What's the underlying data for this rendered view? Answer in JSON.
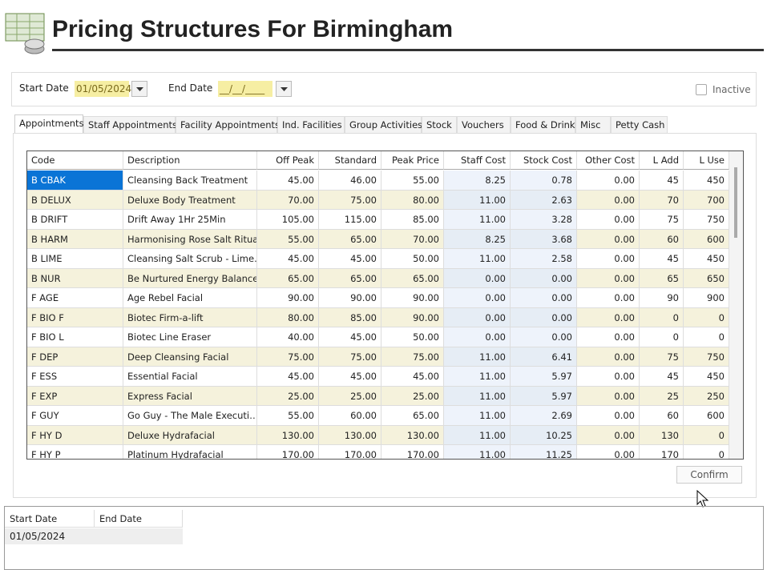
{
  "header": {
    "title": "Pricing Structures For Birmingham"
  },
  "filters": {
    "start_label": "Start Date",
    "start_value": "01/05/2024",
    "end_label": "End Date",
    "end_value": "__/__/____",
    "inactive": "Inactive"
  },
  "tabs": [
    "Appointments",
    "Staff Appointments",
    "Facility Appointments",
    "Ind. Facilities",
    "Group Activities",
    "Stock",
    "Vouchers",
    "Food & Drink",
    "Misc",
    "Petty Cash"
  ],
  "table": {
    "columns": [
      "Code",
      "Description",
      "Off Peak",
      "Standard",
      "Peak Price",
      "Staff Cost",
      "Stock Cost",
      "Other Cost",
      "L Add",
      "L Use"
    ],
    "rows": [
      [
        "B CBAK",
        "Cleansing Back Treatment",
        "45.00",
        "46.00",
        "55.00",
        "8.25",
        "0.78",
        "0.00",
        "45",
        "450"
      ],
      [
        "B DELUX",
        "Deluxe Body Treatment",
        "70.00",
        "75.00",
        "80.00",
        "11.00",
        "2.63",
        "0.00",
        "70",
        "700"
      ],
      [
        "B DRIFT",
        "Drift Away 1Hr 25Min",
        "105.00",
        "115.00",
        "85.00",
        "11.00",
        "3.28",
        "0.00",
        "75",
        "750"
      ],
      [
        "B HARM",
        "Harmonising Rose Salt Ritual",
        "55.00",
        "65.00",
        "70.00",
        "8.25",
        "3.68",
        "0.00",
        "60",
        "600"
      ],
      [
        "B LIME",
        "Cleansing Salt Scrub - Lime…",
        "45.00",
        "45.00",
        "50.00",
        "11.00",
        "2.58",
        "0.00",
        "45",
        "450"
      ],
      [
        "B NUR",
        "Be Nurtured Energy Balancer",
        "65.00",
        "65.00",
        "65.00",
        "0.00",
        "0.00",
        "0.00",
        "65",
        "650"
      ],
      [
        "F AGE",
        "Age Rebel Facial",
        "90.00",
        "90.00",
        "90.00",
        "0.00",
        "0.00",
        "0.00",
        "90",
        "900"
      ],
      [
        "F BIO F",
        "Biotec Firm-a-lift",
        "80.00",
        "85.00",
        "90.00",
        "0.00",
        "0.00",
        "0.00",
        "0",
        "0"
      ],
      [
        "F BIO L",
        "Biotec Line Eraser",
        "40.00",
        "45.00",
        "50.00",
        "0.00",
        "0.00",
        "0.00",
        "0",
        "0"
      ],
      [
        "F DEP",
        "Deep Cleansing Facial",
        "75.00",
        "75.00",
        "75.00",
        "11.00",
        "6.41",
        "0.00",
        "75",
        "750"
      ],
      [
        "F ESS",
        "Essential Facial",
        "45.00",
        "45.00",
        "45.00",
        "11.00",
        "5.97",
        "0.00",
        "45",
        "450"
      ],
      [
        "F EXP",
        "Express Facial",
        "25.00",
        "25.00",
        "25.00",
        "11.00",
        "5.97",
        "0.00",
        "25",
        "250"
      ],
      [
        "F GUY",
        "Go Guy - The Male Executi…",
        "55.00",
        "60.00",
        "65.00",
        "11.00",
        "2.69",
        "0.00",
        "60",
        "600"
      ],
      [
        "F HY D",
        "Deluxe Hydrafacial",
        "130.00",
        "130.00",
        "130.00",
        "11.00",
        "10.25",
        "0.00",
        "130",
        "0"
      ],
      [
        "F HY P",
        "Platinum Hydrafacial",
        "170.00",
        "170.00",
        "170.00",
        "11.00",
        "11.25",
        "0.00",
        "170",
        "0"
      ]
    ]
  },
  "confirm": "Confirm",
  "bottom": {
    "columns": [
      "Start Date",
      "End Date"
    ],
    "rows": [
      [
        "01/05/2024"
      ]
    ]
  }
}
